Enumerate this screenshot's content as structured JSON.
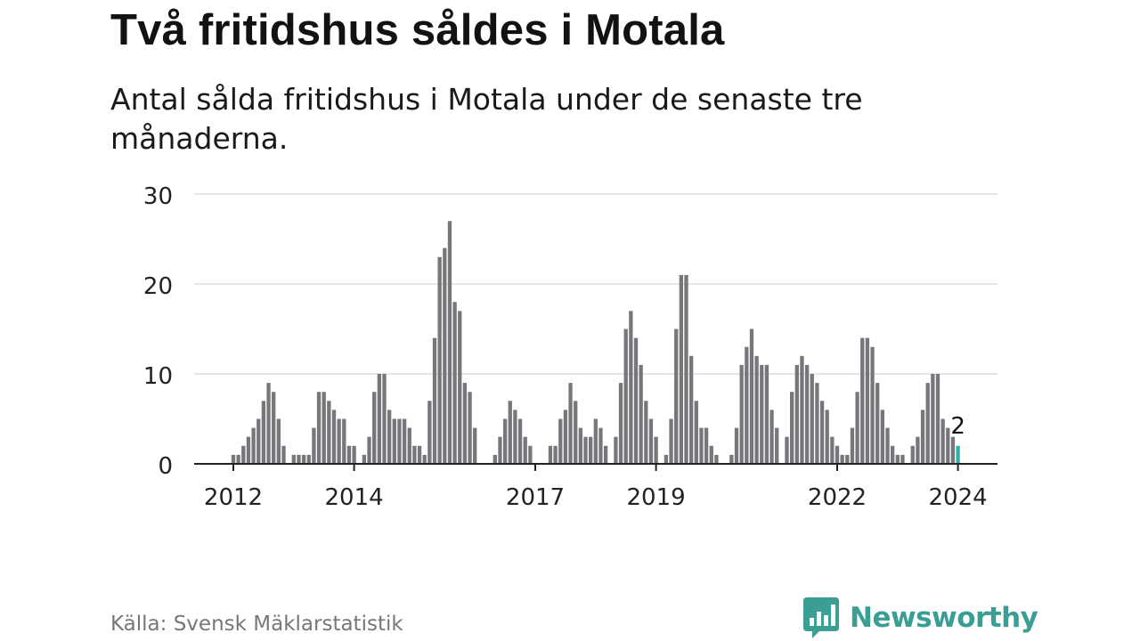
{
  "title": "Två fritidshus såldes i Motala",
  "subtitle": "Antal sålda fritidshus i Motala under de senaste tre månaderna.",
  "source": "Källa: Svensk Mäklarstatistik",
  "brand": {
    "name": "Newsworthy",
    "icon": "newsworthy-logo-icon",
    "color": "#3a9e95"
  },
  "colors": {
    "bar": "#77767b",
    "highlight": "#2bb3a6",
    "grid": "#dddddd",
    "axis": "#222222"
  },
  "chart_data": {
    "type": "bar",
    "title": "Två fritidshus såldes i Motala",
    "xlabel": "",
    "ylabel": "",
    "ylim": [
      0,
      30
    ],
    "yticks": [
      "0",
      "10",
      "20",
      "30"
    ],
    "xtick_labels": [
      "2012",
      "2014",
      "2017",
      "2019",
      "2022",
      "2024"
    ],
    "xtick_bar_index": [
      0,
      24,
      60,
      84,
      120,
      144
    ],
    "values": [
      1,
      1,
      2,
      3,
      4,
      5,
      7,
      9,
      8,
      5,
      2,
      0,
      1,
      1,
      1,
      1,
      4,
      8,
      8,
      7,
      6,
      5,
      5,
      2,
      2,
      0,
      1,
      3,
      8,
      10,
      10,
      6,
      5,
      5,
      5,
      4,
      2,
      2,
      1,
      7,
      14,
      23,
      24,
      27,
      18,
      17,
      9,
      8,
      4,
      0,
      0,
      0,
      1,
      3,
      5,
      7,
      6,
      5,
      3,
      2,
      0,
      0,
      0,
      2,
      2,
      5,
      6,
      9,
      7,
      4,
      3,
      3,
      5,
      4,
      2,
      0,
      3,
      9,
      15,
      17,
      14,
      11,
      7,
      5,
      3,
      0,
      1,
      5,
      15,
      21,
      21,
      12,
      7,
      4,
      4,
      2,
      1,
      0,
      0,
      1,
      4,
      11,
      13,
      15,
      12,
      11,
      11,
      6,
      4,
      0,
      3,
      8,
      11,
      12,
      11,
      10,
      9,
      7,
      6,
      3,
      2,
      1,
      1,
      4,
      8,
      14,
      14,
      13,
      9,
      6,
      4,
      2,
      1,
      1,
      0,
      2,
      3,
      6,
      9,
      10,
      10,
      5,
      4,
      3,
      2
    ],
    "highlight_index": 144,
    "annotation": {
      "bar_index": 144,
      "text": "2"
    }
  }
}
